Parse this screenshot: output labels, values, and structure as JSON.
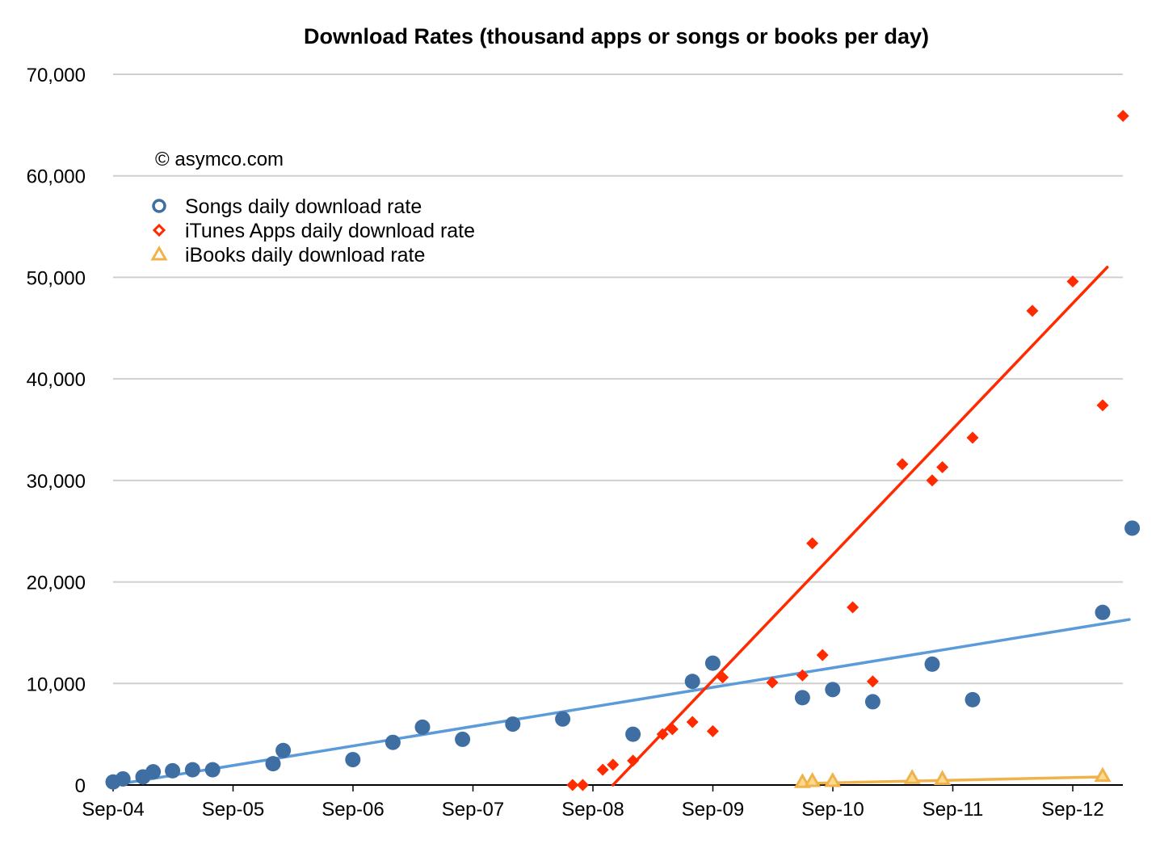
{
  "chart_data": {
    "type": "scatter",
    "title": "Download Rates (thousand apps or songs or books per day)",
    "annotation": "© asymco.com",
    "xlabel": "",
    "ylabel": "",
    "x_tick_labels": [
      "Sep-04",
      "Sep-05",
      "Sep-06",
      "Sep-07",
      "Sep-08",
      "Sep-09",
      "Sep-10",
      "Sep-11",
      "Sep-12"
    ],
    "y_tick_labels": [
      "0",
      "10,000",
      "20,000",
      "30,000",
      "40,000",
      "50,000",
      "60,000",
      "70,000"
    ],
    "ylim": [
      0,
      70000
    ],
    "xlim": [
      "2004-09",
      "2013-03"
    ],
    "grid": true,
    "legend_position": "top-left",
    "series": [
      {
        "name": "Songs daily download rate",
        "marker": "circle",
        "color": "#3f6ea3",
        "trend_color": "#5b9bd9",
        "trend": [
          [
            "2004-09-01",
            0
          ],
          [
            "2013-02-20",
            16300
          ]
        ],
        "points": [
          [
            "2004-09-01",
            300
          ],
          [
            "2004-10-01",
            600
          ],
          [
            "2004-12-01",
            800
          ],
          [
            "2005-01-01",
            1300
          ],
          [
            "2005-03-01",
            1400
          ],
          [
            "2005-05-01",
            1500
          ],
          [
            "2005-07-01",
            1500
          ],
          [
            "2006-01-01",
            2100
          ],
          [
            "2006-02-01",
            3400
          ],
          [
            "2006-09-01",
            2500
          ],
          [
            "2007-01-01",
            4200
          ],
          [
            "2007-04-01",
            5700
          ],
          [
            "2007-08-01",
            4500
          ],
          [
            "2008-01-01",
            6000
          ],
          [
            "2008-06-01",
            6500
          ],
          [
            "2009-01-01",
            5000
          ],
          [
            "2009-07-01",
            10200
          ],
          [
            "2009-09-01",
            12000
          ],
          [
            "2010-06-01",
            8600
          ],
          [
            "2010-09-01",
            9400
          ],
          [
            "2011-01-01",
            8200
          ],
          [
            "2011-07-01",
            11900
          ],
          [
            "2011-11-01",
            8400
          ],
          [
            "2012-12-01",
            17000
          ],
          [
            "2013-03-01",
            25300
          ]
        ]
      },
      {
        "name": "iTunes Apps daily download rate",
        "marker": "diamond",
        "color": "#ff2a00",
        "trend_color": "#ff2a00",
        "trend": [
          [
            "2008-11-01",
            0
          ],
          [
            "2012-12-15",
            51000
          ]
        ],
        "points": [
          [
            "2008-07-01",
            0
          ],
          [
            "2008-08-01",
            0
          ],
          [
            "2008-10-01",
            1500
          ],
          [
            "2008-11-01",
            2000
          ],
          [
            "2009-01-01",
            2400
          ],
          [
            "2009-04-01",
            5000
          ],
          [
            "2009-05-01",
            5500
          ],
          [
            "2009-07-01",
            6200
          ],
          [
            "2009-09-01",
            5300
          ],
          [
            "2009-10-01",
            10600
          ],
          [
            "2010-03-01",
            10100
          ],
          [
            "2010-06-01",
            10800
          ],
          [
            "2010-07-01",
            23800
          ],
          [
            "2010-08-01",
            12800
          ],
          [
            "2010-11-01",
            17500
          ],
          [
            "2011-01-01",
            10200
          ],
          [
            "2011-04-01",
            31600
          ],
          [
            "2011-07-01",
            30000
          ],
          [
            "2011-08-01",
            31300
          ],
          [
            "2011-11-01",
            34200
          ],
          [
            "2012-05-01",
            46700
          ],
          [
            "2012-09-01",
            49600
          ],
          [
            "2012-12-01",
            37400
          ],
          [
            "2013-02-01",
            65900
          ]
        ]
      },
      {
        "name": "iBooks daily download rate",
        "marker": "triangle",
        "color": "#f0b24a",
        "trend_color": "#f0b24a",
        "trend": [
          [
            "2010-06-01",
            150
          ],
          [
            "2012-12-01",
            800
          ]
        ],
        "points": [
          [
            "2010-06-01",
            300
          ],
          [
            "2010-07-01",
            400
          ],
          [
            "2010-09-01",
            400
          ],
          [
            "2011-05-01",
            700
          ],
          [
            "2011-08-01",
            600
          ],
          [
            "2012-12-01",
            900
          ]
        ]
      }
    ]
  }
}
